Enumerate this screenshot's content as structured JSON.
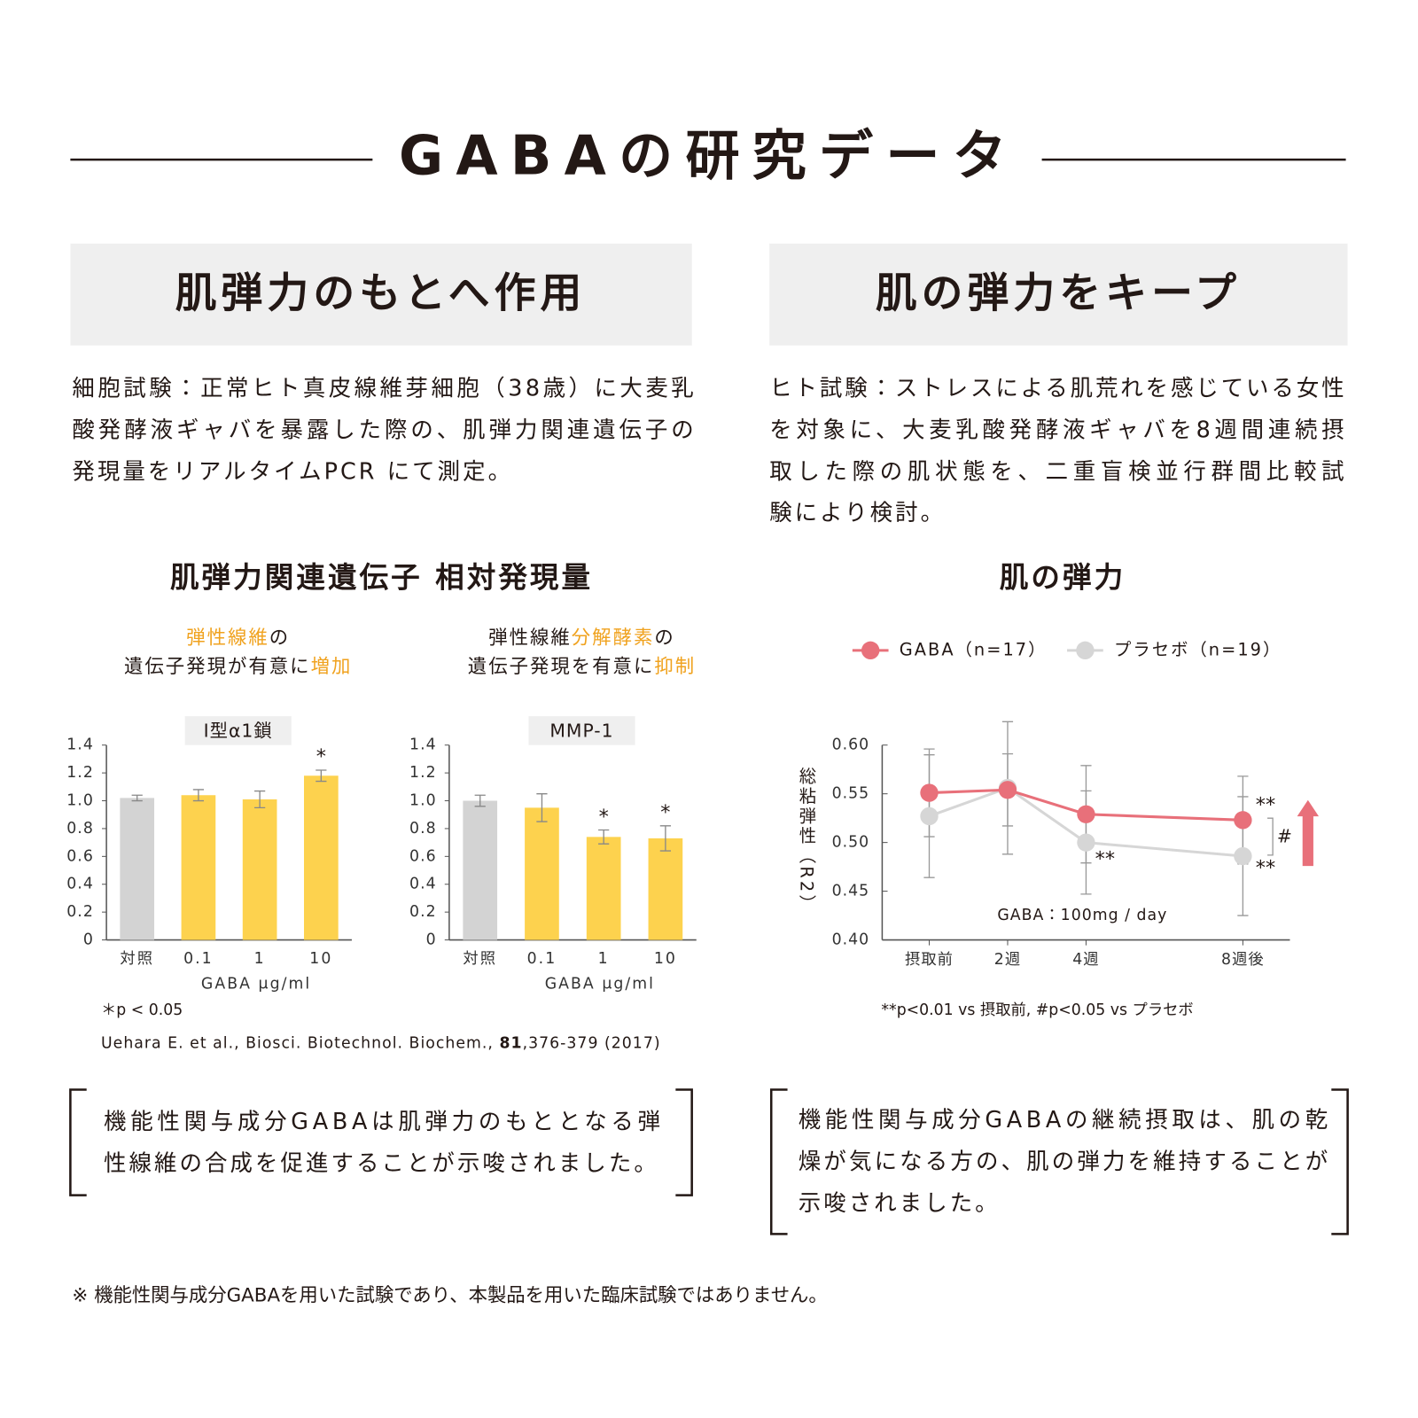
{
  "title": "GABAの研究データ",
  "sections": [
    {
      "heading": "肌弾力のもとへ作用",
      "description": [
        "細胞試験：正常ヒト真皮線維芽細胞（38歳）に大麦乳",
        "酸発酵液ギャバを暴露した際の、肌弾力関連遺伝子の",
        "発現量をリアルタイムPCR にて測定。"
      ],
      "chart_title": "肌弾力関連遺伝子 相対発現量",
      "footnote": "＊p < 0.05",
      "citation": [
        "Uehara E. et al., Biosci. Biotechnol. Biochem., ",
        "81",
        ",376-379 (2017)"
      ],
      "conclusion": [
        "機能性関与成分GABAは肌弾力のもととなる弾",
        "性線維の合成を促進することが示唆されました。"
      ]
    },
    {
      "heading": "肌の弾力をキープ",
      "description": [
        "ヒト試験：ストレスによる肌荒れを感じている女性",
        "を対象に、大麦乳酸発酵液ギャバを8週間連続摂",
        "取した際の肌状態を、二重盲検並行群間比較試",
        "験により検討。"
      ],
      "chart_title": "肌の弾力",
      "conclusion": [
        "機能性関与成分GABAの継続摂取は、肌の乾",
        "燥が気になる方の、肌の弾力を維持することが",
        "示唆されました。"
      ]
    }
  ],
  "chart_data": [
    {
      "type": "bar",
      "label": "I型α1鎖",
      "subtitle": [
        [
          {
            "text": "弾性線維",
            "color": "#f0a21e"
          },
          {
            "text": "の"
          }
        ],
        [
          {
            "text": "遺伝子発現が有意に"
          },
          {
            "text": "増加",
            "color": "#f0a21e"
          }
        ]
      ],
      "categories": [
        "対照",
        "0.1",
        "1",
        "10"
      ],
      "values": [
        1.02,
        1.04,
        1.01,
        1.18
      ],
      "errors": [
        0.02,
        0.04,
        0.06,
        0.04
      ],
      "colors": [
        "#d3d3d3",
        "#fdd24e",
        "#fdd24e",
        "#fdd24e"
      ],
      "significance": [
        null,
        null,
        null,
        "*"
      ],
      "xlabel": "GABA μg/ml",
      "ylim": [
        0,
        1.4
      ],
      "yticks": [
        0,
        0.2,
        0.4,
        0.6,
        0.8,
        {
          "value": 1,
          "label": "1.0"
        },
        1.2,
        1.4
      ]
    },
    {
      "type": "bar",
      "label": "MMP-1",
      "subtitle": [
        [
          {
            "text": "弾性線維"
          },
          {
            "text": "分解酵素",
            "color": "#f0a21e"
          },
          {
            "text": "の"
          }
        ],
        [
          {
            "text": "遺伝子発現を有意に"
          },
          {
            "text": "抑制",
            "color": "#f0a21e"
          }
        ]
      ],
      "categories": [
        "対照",
        "0.1",
        "1",
        "10"
      ],
      "values": [
        1.0,
        0.95,
        0.74,
        0.73
      ],
      "errors": [
        0.04,
        0.1,
        0.05,
        0.09
      ],
      "colors": [
        "#d3d3d3",
        "#fdd24e",
        "#fdd24e",
        "#fdd24e"
      ],
      "significance": [
        null,
        null,
        "*",
        "*"
      ],
      "xlabel": "GABA μg/ml",
      "ylim": [
        0,
        1.4
      ],
      "yticks": [
        0,
        0.2,
        0.4,
        0.6,
        0.8,
        {
          "value": 1,
          "label": "1.0"
        },
        1.2,
        1.4
      ]
    },
    {
      "type": "line",
      "legend": "top",
      "ylabel": "総粘弾性（R2）",
      "x": [
        0,
        2,
        4,
        8
      ],
      "xlim": [
        -1.2,
        9.2
      ],
      "xticks": [
        {
          "value": 0,
          "label": "摂取前"
        },
        {
          "value": 2,
          "label": "2週"
        },
        {
          "value": 4,
          "label": "4週"
        },
        {
          "value": 8,
          "label": "8週後"
        }
      ],
      "ylim": [
        0.4,
        0.6
      ],
      "yticks": [
        {
          "value": 0.4,
          "label": "0.40"
        },
        0.45,
        {
          "value": 0.5,
          "label": "0.50"
        },
        0.55,
        {
          "value": 0.6,
          "label": "0.60"
        }
      ],
      "series": [
        {
          "name": "GABA（n=17）",
          "color": "#e8707a",
          "values": [
            0.551,
            0.554,
            0.529,
            0.523
          ],
          "errors": [
            0.045,
            0.037,
            0.05,
            0.045
          ]
        },
        {
          "name": "プラセボ（n=19）",
          "color": "#d6d6d6",
          "values": [
            0.527,
            0.556,
            0.5,
            0.486
          ],
          "errors": [
            0.063,
            0.068,
            0.053,
            0.061
          ]
        }
      ],
      "annotations": [
        "**",
        "**",
        "**",
        "#",
        "GABA：100mg / day"
      ],
      "footnote": "**p<0.01 vs 摂取前, #p<0.05 vs プラセボ"
    }
  ],
  "note": "※ 機能性関与成分GABAを用いた試験であり、本製品を用いた臨床試験ではありません。"
}
